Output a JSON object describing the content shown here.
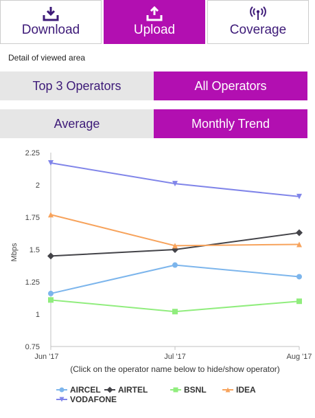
{
  "tabs": [
    {
      "label": "Download",
      "icon": "download-icon",
      "active": false
    },
    {
      "label": "Upload",
      "icon": "upload-icon",
      "active": true
    },
    {
      "label": "Coverage",
      "icon": "signal-tower-icon",
      "active": false
    }
  ],
  "caption": "Detail of viewed area",
  "operator_toggle": {
    "left": "Top 3 Operators",
    "right": "All Operators",
    "selected": "All Operators"
  },
  "view_toggle": {
    "left": "Average",
    "right": "Monthly Trend",
    "selected": "Monthly Trend"
  },
  "colors": {
    "accent": "#b20fb1",
    "text_dark": "#3d1a78",
    "inactive_bg": "#e6e6e6"
  },
  "chart_data": {
    "type": "line",
    "title": "",
    "xlabel": "",
    "ylabel": "Mbps",
    "ylim": [
      0.75,
      2.25
    ],
    "yticks": [
      "0.75",
      "1",
      "1.25",
      "1.5",
      "1.75",
      "2",
      "2.25"
    ],
    "categories": [
      "Jun '17",
      "Jul '17",
      "Aug '17"
    ],
    "note": "(Click on the operator name below to hide/show operator)",
    "legend_position": "bottom",
    "series": [
      {
        "name": "AIRCEL",
        "color": "#7cb5ec",
        "marker": "circle",
        "values": [
          1.16,
          1.38,
          1.29
        ]
      },
      {
        "name": "AIRTEL",
        "color": "#434348",
        "marker": "diamond",
        "values": [
          1.45,
          1.5,
          1.63
        ]
      },
      {
        "name": "BSNL",
        "color": "#90ed7d",
        "marker": "square",
        "values": [
          1.11,
          1.02,
          1.1
        ]
      },
      {
        "name": "IDEA",
        "color": "#f7a35c",
        "marker": "triangle",
        "values": [
          1.77,
          1.53,
          1.54
        ]
      },
      {
        "name": "VODAFONE",
        "color": "#8085e9",
        "marker": "triangle-down",
        "values": [
          2.17,
          2.01,
          1.91
        ]
      }
    ]
  }
}
